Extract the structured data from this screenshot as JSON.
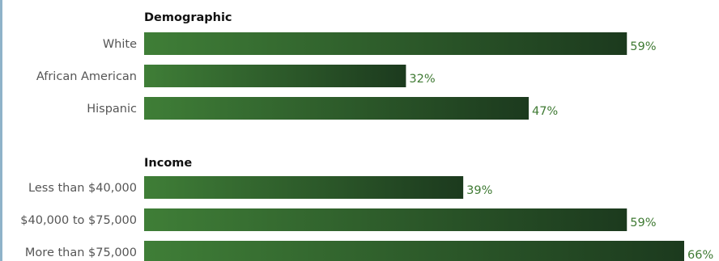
{
  "chart_data": [
    {
      "type": "bar",
      "orientation": "horizontal",
      "title": "Demographic",
      "categories": [
        "White",
        "African American",
        "Hispanic"
      ],
      "values": [
        59,
        32,
        47
      ],
      "value_labels": [
        "59%",
        "32%",
        "47%"
      ],
      "unit": "%",
      "xlim": [
        0,
        66
      ]
    },
    {
      "type": "bar",
      "orientation": "horizontal",
      "title": "Income",
      "categories": [
        "Less than $40,000",
        "$40,000 to $75,000",
        "More than $75,000"
      ],
      "values": [
        39,
        59,
        66
      ],
      "value_labels": [
        "39%",
        "59%",
        "66%"
      ],
      "unit": "%",
      "xlim": [
        0,
        66
      ]
    }
  ],
  "colors": {
    "bar_start": "#3f7e37",
    "bar_end": "#1c3a1e",
    "value_text": "#3f7a33",
    "label_text": "#555555",
    "title_text": "#111111",
    "left_rule": "#8fb3c9"
  }
}
